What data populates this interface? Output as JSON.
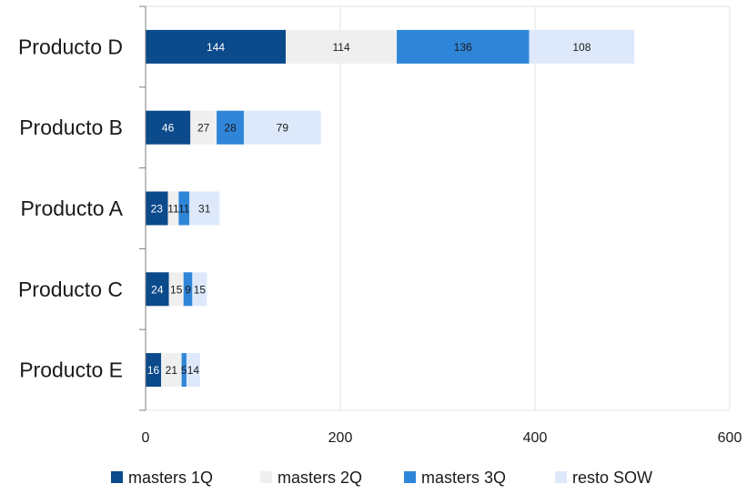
{
  "chart_data": {
    "type": "bar",
    "orientation": "horizontal",
    "stacked": true,
    "categories": [
      "Producto D",
      "Producto B",
      "Producto A",
      "Producto C",
      "Producto E"
    ],
    "series": [
      {
        "name": "masters 1Q",
        "color": "#0b4a8b",
        "label_color": "#ffffff",
        "values": [
          144,
          46,
          23,
          24,
          16
        ]
      },
      {
        "name": "masters 2Q",
        "color": "#efefef",
        "label_color": "#1a1a1a",
        "values": [
          114,
          27,
          11,
          15,
          21
        ]
      },
      {
        "name": "masters 3Q",
        "color": "#2f86d8",
        "label_color": "#1a1a1a",
        "values": [
          136,
          28,
          11,
          9,
          5
        ]
      },
      {
        "name": "resto SOW",
        "color": "#dde9fb",
        "label_color": "#1a1a1a",
        "values": [
          108,
          79,
          31,
          15,
          14
        ]
      }
    ],
    "xlim": [
      0,
      600
    ],
    "xticks": [
      "0",
      "200",
      "400",
      "600"
    ],
    "grid": true,
    "legend_position": "bottom"
  }
}
